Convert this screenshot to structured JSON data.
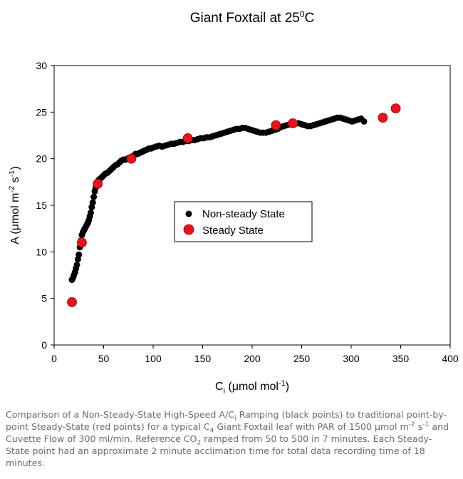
{
  "chart_data": {
    "type": "scatter",
    "title": "Giant Foxtail at 25°C",
    "title_main": "Giant Foxtail at 25",
    "title_sup": "0",
    "title_tail": "C",
    "xlabel": "Ci (μmol mol-1)",
    "xlabel_parts": {
      "base": "C",
      "sub": "i",
      "unit": " (μmol mol",
      "sup": "-1",
      "close": ")"
    },
    "ylabel": "A (μmol m-2 s-1)",
    "ylabel_parts": {
      "p1": "A (μmol m",
      "s1": "-2",
      "p2": " s",
      "s2": "-1",
      "p3": ")"
    },
    "xlim": [
      0,
      400
    ],
    "ylim": [
      0,
      30
    ],
    "xticks": [
      0,
      50,
      100,
      150,
      200,
      250,
      300,
      350,
      400
    ],
    "yticks": [
      0,
      5,
      10,
      15,
      20,
      25,
      30
    ],
    "grid": false,
    "legend_position": "center",
    "series": [
      {
        "name": "Non-steady State",
        "color": "#000000",
        "x": [
          18,
          19,
          20,
          21,
          22,
          23,
          24,
          25,
          26,
          27,
          28,
          29,
          30,
          31,
          32,
          33,
          34,
          35,
          36,
          37,
          38,
          39,
          40,
          41,
          42,
          43,
          44,
          45,
          46,
          48,
          50,
          52,
          54,
          56,
          58,
          60,
          62,
          64,
          66,
          68,
          70,
          72,
          74,
          76,
          78,
          80,
          82,
          84,
          86,
          88,
          90,
          92,
          94,
          96,
          98,
          100,
          103,
          106,
          109,
          112,
          115,
          118,
          121,
          124,
          127,
          130,
          133,
          136,
          139,
          142,
          145,
          148,
          151,
          154,
          157,
          160,
          163,
          166,
          169,
          172,
          175,
          178,
          181,
          184,
          187,
          190,
          193,
          196,
          199,
          202,
          205,
          208,
          211,
          214,
          217,
          220,
          223,
          226,
          229,
          232,
          235,
          238,
          241,
          244,
          247,
          250,
          253,
          256,
          259,
          262,
          265,
          268,
          271,
          274,
          277,
          280,
          283,
          286,
          289,
          292,
          295,
          298,
          301,
          304,
          307,
          310,
          313
        ],
        "y": [
          7.0,
          7.2,
          7.5,
          7.8,
          8.2,
          8.6,
          9.2,
          9.7,
          10.5,
          11.2,
          11.8,
          12.1,
          12.3,
          12.5,
          12.7,
          12.9,
          13.1,
          13.4,
          13.8,
          14.2,
          14.8,
          15.3,
          15.9,
          16.5,
          16.9,
          17.2,
          17.5,
          17.7,
          17.8,
          18.0,
          18.2,
          18.4,
          18.5,
          18.7,
          18.9,
          19.1,
          19.3,
          19.4,
          19.6,
          19.8,
          19.9,
          19.9,
          20.0,
          20.1,
          20.2,
          20.3,
          20.5,
          20.5,
          20.6,
          20.7,
          20.8,
          20.9,
          21.0,
          21.1,
          21.1,
          21.2,
          21.3,
          21.4,
          21.3,
          21.4,
          21.5,
          21.6,
          21.6,
          21.7,
          21.8,
          21.8,
          21.9,
          21.9,
          22.0,
          22.0,
          22.1,
          22.2,
          22.2,
          22.3,
          22.3,
          22.4,
          22.5,
          22.6,
          22.7,
          22.8,
          22.9,
          23.0,
          23.1,
          23.2,
          23.2,
          23.3,
          23.3,
          23.2,
          23.1,
          23.0,
          22.9,
          22.8,
          22.8,
          22.8,
          22.9,
          23.0,
          23.1,
          23.2,
          23.4,
          23.5,
          23.6,
          23.7,
          23.8,
          23.8,
          23.8,
          23.7,
          23.6,
          23.5,
          23.5,
          23.6,
          23.7,
          23.8,
          23.9,
          24.0,
          24.1,
          24.2,
          24.3,
          24.4,
          24.4,
          24.3,
          24.2,
          24.1,
          24.0,
          24.1,
          24.2,
          24.3,
          24.0
        ]
      },
      {
        "name": "Steady State",
        "color": "#e8121b",
        "x": [
          18,
          28,
          44,
          78,
          135,
          224,
          241,
          332,
          345
        ],
        "y": [
          4.6,
          11.0,
          17.3,
          20.0,
          22.2,
          23.6,
          23.8,
          24.4,
          25.4
        ]
      }
    ]
  },
  "caption": {
    "t1": "Comparison of a Non-Steady-State High-Speed A/C",
    "s1": "i",
    "t2": " Ramping (black points) to traditional point-by-point Steady-State (red points) for a typical C",
    "s2": "4",
    "t3": " Giant Foxtail leaf with PAR of 1500 μmol m",
    "u1": "-2",
    "t4": " s",
    "u2": "-1",
    "t5": " and Cuvette Flow of 300 ml/min. Reference CO",
    "s3": "2",
    "t6": " ramped from 50 to 500 in 7 minutes. Each Steady-State point had an approximate 2 minute acclimation time for total data recording time of 18 minutes."
  }
}
